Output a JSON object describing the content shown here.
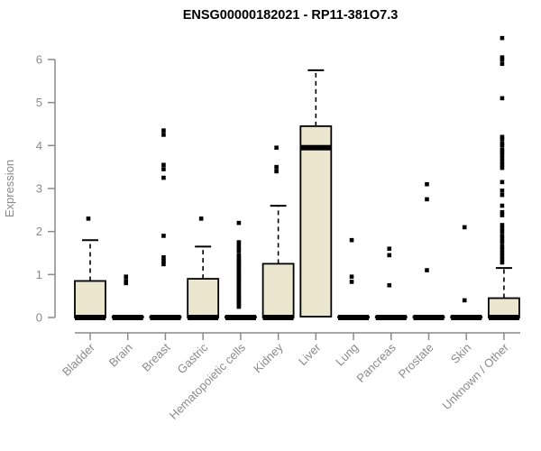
{
  "chart_data": {
    "type": "boxplot",
    "title": "ENSG00000182021 - RP11-381O7.3",
    "ylabel": "Expression",
    "xlabel": "",
    "ylim": [
      0,
      6
    ],
    "yticks": [
      0,
      1,
      2,
      3,
      4,
      5,
      6
    ],
    "grid": false,
    "legend": false,
    "box_fill": "#EBE7CE",
    "box_border": "#000000",
    "median_color": "#000000",
    "axis_color": "#8a8a8a",
    "outlier_color": "#000000",
    "categories": [
      "Bladder",
      "Brain",
      "Breast",
      "Gastric",
      "Hematopoietic cells",
      "Kidney",
      "Liver",
      "Lung",
      "Pancreas",
      "Prostate",
      "Skin",
      "Unknown / Other"
    ],
    "series": [
      {
        "category": "Bladder",
        "q1": 0,
        "median": 0,
        "q3": 0.85,
        "whisker_low": 0,
        "whisker_high": 1.8,
        "outliers": [
          2.3
        ]
      },
      {
        "category": "Brain",
        "q1": 0,
        "median": 0,
        "q3": 0.02,
        "whisker_low": 0,
        "whisker_high": 0.02,
        "outliers": [
          0.95,
          0.85,
          0.8
        ]
      },
      {
        "category": "Breast",
        "q1": 0,
        "median": 0,
        "q3": 0.02,
        "whisker_low": 0,
        "whisker_high": 0.02,
        "outliers": [
          4.35,
          4.25,
          3.55,
          3.45,
          3.25,
          1.9,
          1.4,
          1.32,
          1.24
        ]
      },
      {
        "category": "Gastric",
        "q1": 0,
        "median": 0,
        "q3": 0.9,
        "whisker_low": 0,
        "whisker_high": 1.65,
        "outliers": [
          2.3
        ]
      },
      {
        "category": "Hematopoietic cells",
        "q1": 0,
        "median": 0,
        "q3": 0.02,
        "whisker_low": 0,
        "whisker_high": 0.02,
        "outliers": [
          2.2,
          1.75,
          1.68,
          1.6,
          1.55,
          1.45,
          1.41,
          1.37,
          1.33,
          1.29,
          1.25,
          1.21,
          1.17,
          1.13,
          1.09,
          1.05,
          1.01,
          0.97,
          0.93,
          0.89,
          0.85,
          0.81,
          0.77,
          0.73,
          0.69,
          0.65,
          0.61,
          0.57,
          0.53,
          0.49,
          0.45,
          0.41,
          0.37,
          0.33,
          0.29,
          0.25
        ]
      },
      {
        "category": "Kidney",
        "q1": 0,
        "median": 0,
        "q3": 1.25,
        "whisker_low": 0,
        "whisker_high": 2.6,
        "outliers": [
          3.95,
          3.5,
          3.4
        ]
      },
      {
        "category": "Liver",
        "q1": 0.02,
        "median": 3.95,
        "q3": 4.45,
        "whisker_low": 0.02,
        "whisker_high": 5.75,
        "outliers": []
      },
      {
        "category": "Lung",
        "q1": 0,
        "median": 0,
        "q3": 0.02,
        "whisker_low": 0,
        "whisker_high": 0.02,
        "outliers": [
          1.8,
          0.95,
          0.83
        ]
      },
      {
        "category": "Pancreas",
        "q1": 0,
        "median": 0,
        "q3": 0.02,
        "whisker_low": 0,
        "whisker_high": 0.02,
        "outliers": [
          1.6,
          1.45,
          0.75
        ]
      },
      {
        "category": "Prostate",
        "q1": 0,
        "median": 0,
        "q3": 0.02,
        "whisker_low": 0,
        "whisker_high": 0.02,
        "outliers": [
          3.1,
          2.75,
          1.1
        ]
      },
      {
        "category": "Skin",
        "q1": 0,
        "median": 0,
        "q3": 0.02,
        "whisker_low": 0,
        "whisker_high": 0.02,
        "outliers": [
          2.1,
          0.4
        ]
      },
      {
        "category": "Unknown / Other",
        "q1": 0,
        "median": 0,
        "q3": 0.45,
        "whisker_low": 0,
        "whisker_high": 1.15,
        "outliers": [
          6.5,
          6.05,
          6.0,
          5.9,
          5.1,
          4.2,
          4.15,
          4.05,
          4.0,
          3.9,
          3.85,
          3.78,
          3.7,
          3.62,
          3.55,
          3.48,
          3.15,
          2.95,
          2.85,
          2.6,
          2.45,
          2.38,
          2.15,
          2.08,
          2.0,
          1.9,
          1.82,
          1.75,
          1.65,
          1.58,
          1.5,
          1.42,
          1.35,
          1.28
        ]
      }
    ]
  }
}
